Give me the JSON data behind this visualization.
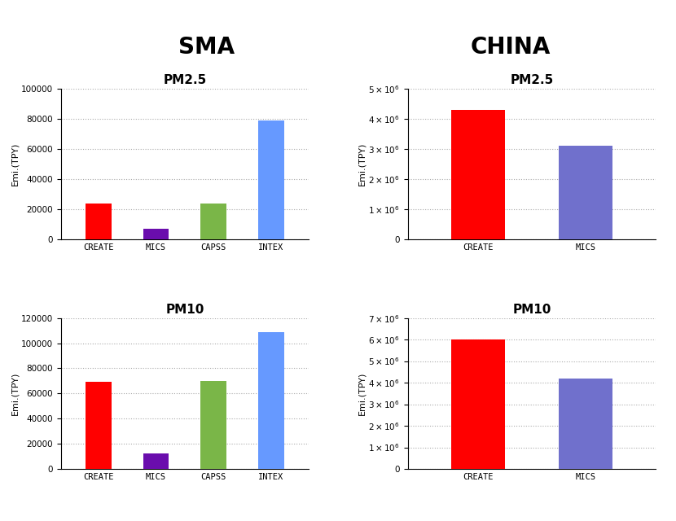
{
  "sma_pm25": {
    "categories": [
      "CREATE",
      "MICS",
      "CAPSS",
      "INTEX"
    ],
    "values": [
      24000,
      7000,
      24000,
      79000
    ],
    "colors": [
      "#ff0000",
      "#6a0dad",
      "#7ab648",
      "#6699ff"
    ],
    "title": "PM2.5",
    "ylabel": "Emi.(TPY)",
    "ylim": [
      0,
      100000
    ],
    "yticks": [
      0,
      20000,
      40000,
      60000,
      80000,
      100000
    ]
  },
  "sma_pm10": {
    "categories": [
      "CREATE",
      "MICS",
      "CAPSS",
      "INTEX"
    ],
    "values": [
      69000,
      12000,
      70000,
      109000
    ],
    "colors": [
      "#ff0000",
      "#6a0dad",
      "#7ab648",
      "#6699ff"
    ],
    "title": "PM10",
    "ylabel": "Emi.(TPY)",
    "ylim": [
      0,
      120000
    ],
    "yticks": [
      0,
      20000,
      40000,
      60000,
      80000,
      100000,
      120000
    ]
  },
  "china_pm25": {
    "categories": [
      "CREATE",
      "MICS"
    ],
    "values": [
      4300000,
      3100000
    ],
    "colors": [
      "#ff0000",
      "#7070cc"
    ],
    "title": "PM2.5",
    "ylabel": "Emi.(TPY)",
    "ylim": [
      0,
      5000000
    ],
    "yticks": [
      0,
      1000000,
      2000000,
      3000000,
      4000000,
      5000000
    ]
  },
  "china_pm10": {
    "categories": [
      "CREATE",
      "MICS"
    ],
    "values": [
      6000000,
      4200000
    ],
    "colors": [
      "#ff0000",
      "#7070cc"
    ],
    "title": "PM10",
    "ylabel": "Emi.(TPY)",
    "ylim": [
      0,
      7000000
    ],
    "yticks": [
      0,
      1000000,
      2000000,
      3000000,
      4000000,
      5000000,
      6000000,
      7000000
    ]
  },
  "col_titles": [
    "SMA",
    "CHINA"
  ],
  "background_color": "#ffffff",
  "col_title_fontsize": 20,
  "subplot_title_fontsize": 11,
  "axis_label_fontsize": 8,
  "tick_label_fontsize": 7.5
}
